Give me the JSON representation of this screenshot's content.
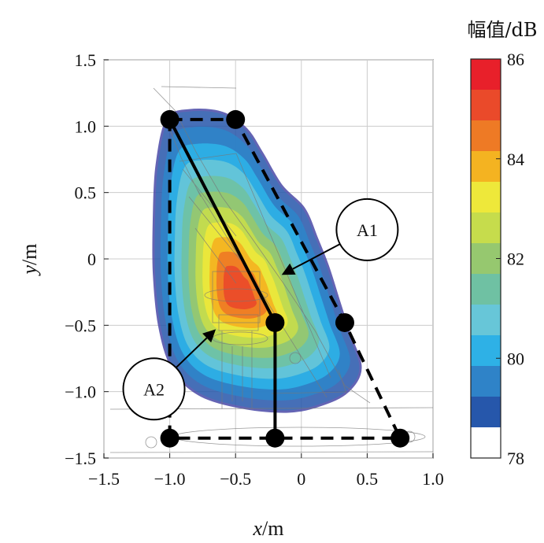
{
  "chart_data": {
    "type": "heatmap",
    "x_axis": {
      "label_var": "x",
      "label_unit": "/m",
      "range": [
        -1.5,
        1.0
      ],
      "ticks": [
        -1.5,
        -1.0,
        -0.5,
        0,
        0.5,
        1.0
      ],
      "tick_labels": [
        "−1.5",
        "−1.0",
        "−0.5",
        "0",
        "0.5",
        "1.0"
      ]
    },
    "y_axis": {
      "label_var": "y",
      "label_unit": "/m",
      "range": [
        -1.5,
        1.5
      ],
      "ticks": [
        1.5,
        1.0,
        0.5,
        0,
        -0.5,
        -1.0,
        -1.5
      ],
      "tick_labels": [
        "1.5",
        "1.0",
        "0.5",
        "0",
        "−0.5",
        "−1.0",
        "−1.5"
      ]
    },
    "grid": true,
    "colorbar": {
      "title": "幅值/dB",
      "range": [
        78,
        86
      ],
      "ticks": [
        86,
        84,
        82,
        80,
        78
      ],
      "tick_labels": [
        "86",
        "84",
        "82",
        "80",
        "78"
      ],
      "colors_top_to_bottom": [
        "#e8202a",
        "#ea4a2a",
        "#ee7a25",
        "#f4b321",
        "#eee83a",
        "#c6dc4c",
        "#96c86f",
        "#6fc1a3",
        "#67c6d8",
        "#2eb1e6",
        "#2f83c8",
        "#2657ab",
        "#ffffff"
      ]
    },
    "contour_peak": {
      "x": -0.55,
      "y": -0.25,
      "max_db": 85.5
    },
    "markers": {
      "solid_path": [
        [
          -1.0,
          1.05
        ],
        [
          -0.2,
          -0.48
        ],
        [
          -0.2,
          -1.35
        ]
      ],
      "dashed_path": [
        [
          -1.0,
          1.05
        ],
        [
          -0.5,
          1.05
        ],
        [
          0.33,
          -0.48
        ],
        [
          0.75,
          -1.35
        ],
        [
          -1.0,
          -1.35
        ],
        [
          -1.0,
          1.05
        ]
      ],
      "points": [
        [
          -1.0,
          1.05
        ],
        [
          -0.5,
          1.05
        ],
        [
          -0.2,
          -0.48
        ],
        [
          0.33,
          -0.48
        ],
        [
          -1.0,
          -1.35
        ],
        [
          -0.2,
          -1.35
        ],
        [
          0.75,
          -1.35
        ]
      ]
    },
    "annotations": [
      {
        "text": "A1",
        "circle_center": [
          0.5,
          0.22
        ],
        "arrow_to": [
          -0.15,
          -0.12
        ]
      },
      {
        "text": "A2",
        "circle_center": [
          -1.12,
          -0.98
        ],
        "arrow_to": [
          -0.65,
          -0.53
        ]
      }
    ]
  }
}
